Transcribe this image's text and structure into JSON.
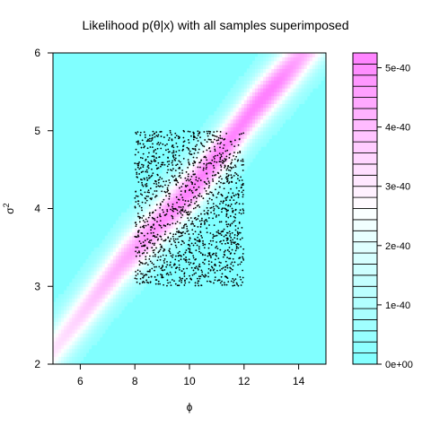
{
  "chart_data": {
    "type": "heatmap",
    "title": "Likelihood p(θ|x) with all samples superimposed",
    "xlabel": "ϕ",
    "ylabel_base": "σ",
    "ylabel_sup": "2",
    "xlim": [
      5,
      15
    ],
    "ylim": [
      2,
      6
    ],
    "x_ticks": [
      {
        "value": 6,
        "label": "6"
      },
      {
        "value": 8,
        "label": "8"
      },
      {
        "value": 10,
        "label": "10"
      },
      {
        "value": 12,
        "label": "12"
      },
      {
        "value": 14,
        "label": "14"
      }
    ],
    "y_ticks": [
      {
        "value": 2,
        "label": "2"
      },
      {
        "value": 3,
        "label": "3"
      },
      {
        "value": 4,
        "label": "4"
      },
      {
        "value": 5,
        "label": "5"
      },
      {
        "value": 6,
        "label": "6"
      }
    ],
    "colorbar": {
      "min": 0,
      "max": 5.25e-40,
      "levels": 28,
      "low_color": "#80ffff",
      "mid_color": "#ffffff",
      "high_color": "#ff80ff",
      "ticks": [
        {
          "value": 0,
          "label": "0e+00"
        },
        {
          "value": 1e-40,
          "label": "1e-40"
        },
        {
          "value": 2e-40,
          "label": "2e-40"
        },
        {
          "value": 3e-40,
          "label": "3e-40"
        },
        {
          "value": 4e-40,
          "label": "4e-40"
        },
        {
          "value": 5e-40,
          "label": "5e-40"
        }
      ]
    },
    "likelihood_ridge": {
      "path": [
        [
          5.6,
          2.45
        ],
        [
          7.5,
          3.3
        ],
        [
          10.2,
          4.3
        ],
        [
          12.4,
          5.3
        ],
        [
          14.2,
          6.0
        ]
      ],
      "peak_at": [
        10.6,
        4.45
      ],
      "peak_value": 5.25e-40
    },
    "samples": {
      "count": 1500,
      "x_range": [
        8.0,
        12.0
      ],
      "y_range": [
        3.0,
        5.0
      ],
      "distribution": "uniform",
      "color": "#000000"
    }
  }
}
